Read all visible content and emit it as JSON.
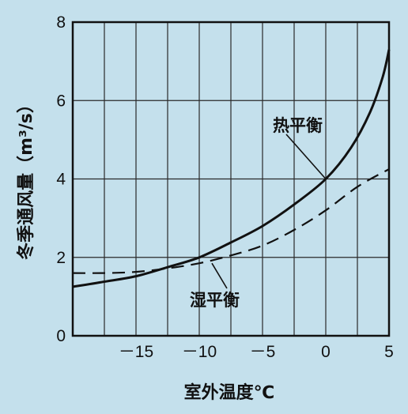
{
  "chart_data": {
    "type": "line",
    "xlabel": "室外温度℃",
    "ylabel": "冬季通风量（m³/s）",
    "xlim": [
      -20,
      5
    ],
    "ylim": [
      0,
      8
    ],
    "x_ticks": [
      -15,
      -10,
      -5,
      0,
      5
    ],
    "x_tick_labels": [
      "－15",
      "－10",
      "－5",
      "0",
      "5"
    ],
    "y_ticks": [
      0,
      2,
      4,
      6,
      8
    ],
    "y_tick_labels": [
      "0",
      "2",
      "4",
      "6",
      "8"
    ],
    "grid": true,
    "legend": "none",
    "series": [
      {
        "name": "热平衡",
        "style": "solid",
        "color": "#111111",
        "x": [
          -20,
          -17.5,
          -15,
          -12.5,
          -10,
          -7.5,
          -5,
          -2.5,
          0,
          2,
          3.5,
          4.5,
          5
        ],
        "y": [
          1.25,
          1.38,
          1.52,
          1.75,
          2.0,
          2.38,
          2.8,
          3.35,
          4.0,
          4.8,
          5.7,
          6.6,
          7.3
        ]
      },
      {
        "name": "湿平衡",
        "style": "dashed",
        "color": "#111111",
        "x": [
          -20,
          -17.5,
          -15,
          -12.5,
          -10,
          -7.5,
          -5,
          -2.5,
          0,
          2.5,
          5
        ],
        "y": [
          1.6,
          1.6,
          1.63,
          1.72,
          1.85,
          2.05,
          2.3,
          2.7,
          3.2,
          3.8,
          4.25
        ]
      }
    ],
    "annotations": [
      {
        "text": "热平衡",
        "series": "热平衡"
      },
      {
        "text": "湿平衡",
        "series": "湿平衡"
      }
    ]
  }
}
